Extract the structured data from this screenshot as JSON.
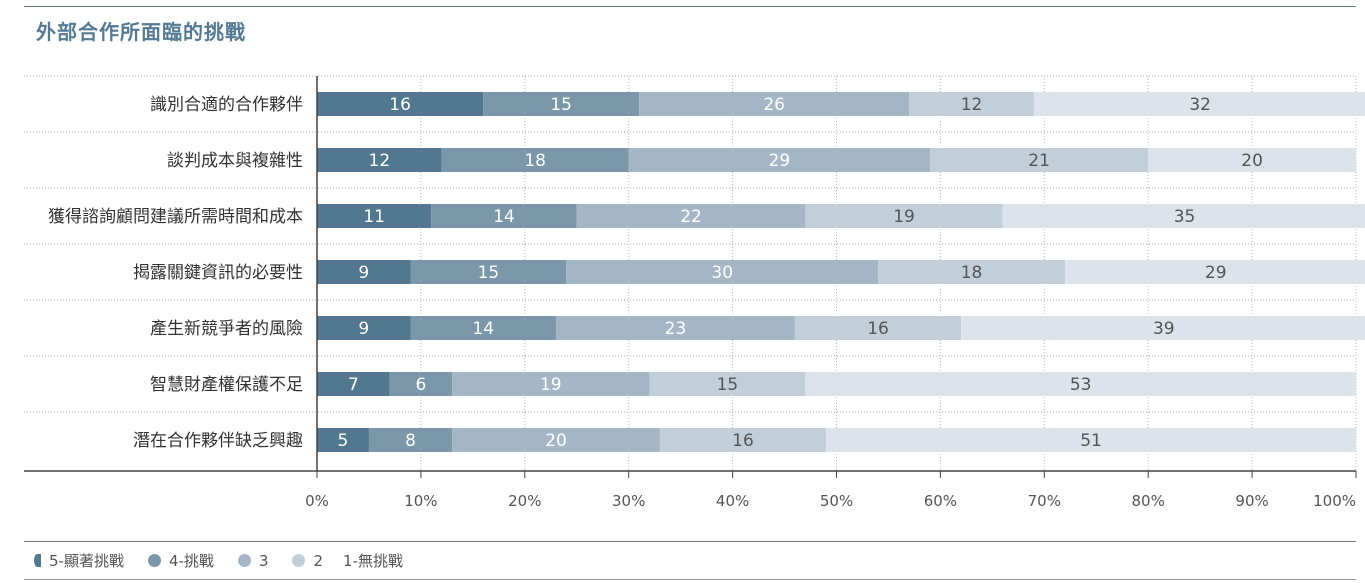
{
  "chart_data": {
    "type": "bar",
    "orientation": "horizontal",
    "stacked": true,
    "title": "外部合作所面臨的挑戰",
    "categories": [
      "識別合適的合作夥伴",
      "談判成本與複雜性",
      "獲得諮詢顧問建議所需時間和成本",
      "揭露關鍵資訊的必要性",
      "產生新競爭者的風險",
      "智慧財產權保護不足",
      "潛在合作夥伴缺乏興趣"
    ],
    "series": [
      {
        "name": "5-顯著挑戰",
        "color": "#52788f",
        "values": [
          16,
          12,
          11,
          9,
          9,
          7,
          5
        ]
      },
      {
        "name": "4-挑戰",
        "color": "#7b98ab",
        "values": [
          15,
          18,
          14,
          15,
          14,
          6,
          8
        ]
      },
      {
        "name": "3",
        "color": "#a5b7c6",
        "values": [
          26,
          29,
          22,
          30,
          23,
          19,
          20
        ]
      },
      {
        "name": "2",
        "color": "#c2cfd9",
        "values": [
          12,
          21,
          19,
          18,
          16,
          15,
          16
        ]
      },
      {
        "name": "1-無挑戰",
        "color": "#dce3ea",
        "values": [
          32,
          20,
          35,
          29,
          39,
          53,
          51
        ]
      }
    ],
    "x_ticks": [
      "0%",
      "10%",
      "20%",
      "30%",
      "40%",
      "50%",
      "60%",
      "70%",
      "80%",
      "90%",
      "100%"
    ],
    "xlim": [
      0,
      100
    ],
    "legend_position": "bottom"
  }
}
